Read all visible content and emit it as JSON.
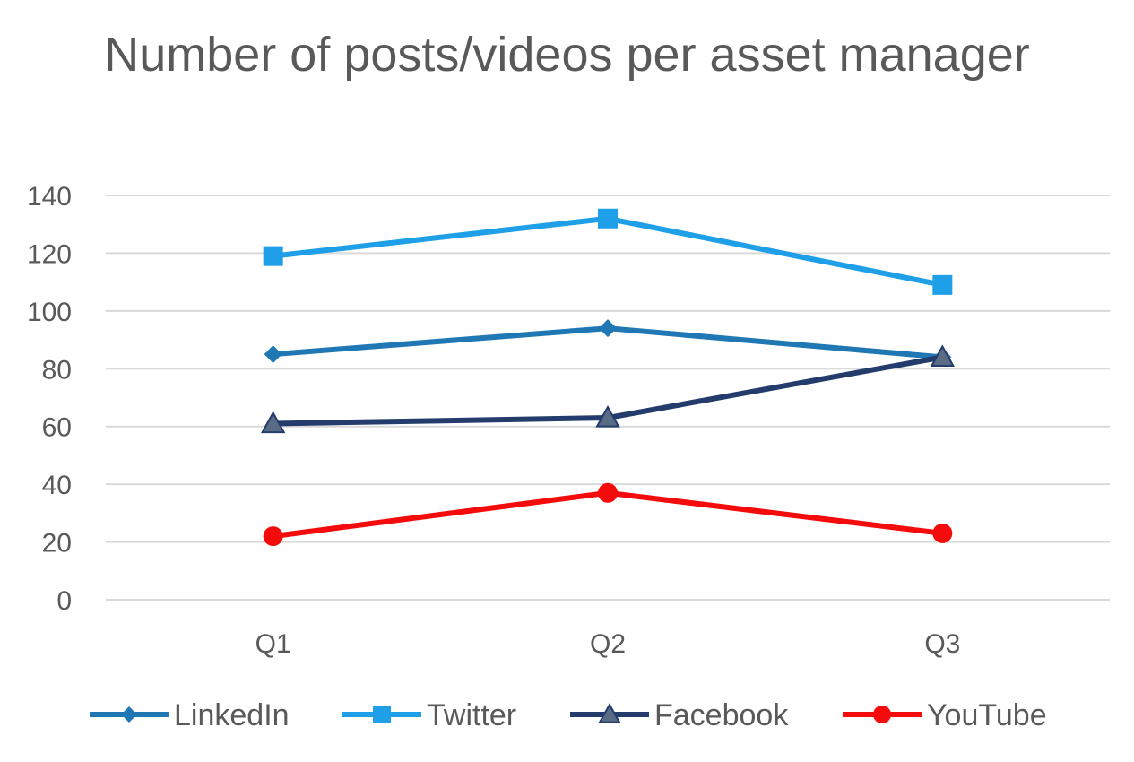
{
  "chart_data": {
    "type": "line",
    "title": "Number of posts/videos per asset manager",
    "categories": [
      "Q1",
      "Q2",
      "Q3"
    ],
    "series": [
      {
        "name": "LinkedIn",
        "values": [
          85,
          94,
          84
        ],
        "color": "#1F77B4",
        "marker": "diamond"
      },
      {
        "name": "Twitter",
        "values": [
          119,
          132,
          109
        ],
        "color": "#1E9FE8",
        "marker": "square"
      },
      {
        "name": "Facebook",
        "values": [
          61,
          63,
          84
        ],
        "color": "#233C6B",
        "marker": "triangle"
      },
      {
        "name": "YouTube",
        "values": [
          22,
          37,
          23
        ],
        "color": "#F40B0B",
        "marker": "circle"
      }
    ],
    "ylim": [
      0,
      140
    ],
    "yticks": [
      0,
      20,
      40,
      60,
      80,
      100,
      120,
      140
    ],
    "xlabel": "",
    "ylabel": "",
    "grid": true,
    "legend": "bottom"
  }
}
